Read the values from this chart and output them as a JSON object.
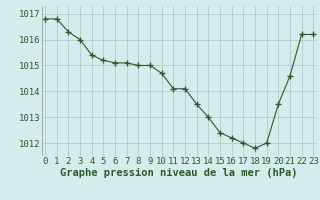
{
  "x": [
    0,
    1,
    2,
    3,
    4,
    5,
    6,
    7,
    8,
    9,
    10,
    11,
    12,
    13,
    14,
    15,
    16,
    17,
    18,
    19,
    20,
    21,
    22,
    23
  ],
  "y": [
    1016.8,
    1016.8,
    1016.3,
    1016.0,
    1015.4,
    1015.2,
    1015.1,
    1015.1,
    1015.0,
    1015.0,
    1014.7,
    1014.1,
    1014.1,
    1013.5,
    1013.0,
    1012.4,
    1012.2,
    1012.0,
    1011.8,
    1012.0,
    1013.5,
    1014.6,
    1016.2,
    1016.2
  ],
  "line_color": "#2d5a2d",
  "marker": "+",
  "marker_size": 4,
  "bg_color": "#d4ecec",
  "grid_color": "#b0cccc",
  "xlabel": "Graphe pression niveau de la mer (hPa)",
  "xlabel_fontsize": 7.5,
  "tick_fontsize": 6.5,
  "ylim": [
    1011.5,
    1017.3
  ],
  "yticks": [
    1012,
    1013,
    1014,
    1015,
    1016,
    1017
  ],
  "xticks": [
    0,
    1,
    2,
    3,
    4,
    5,
    6,
    7,
    8,
    9,
    10,
    11,
    12,
    13,
    14,
    15,
    16,
    17,
    18,
    19,
    20,
    21,
    22,
    23
  ],
  "xlim": [
    -0.3,
    23.3
  ]
}
